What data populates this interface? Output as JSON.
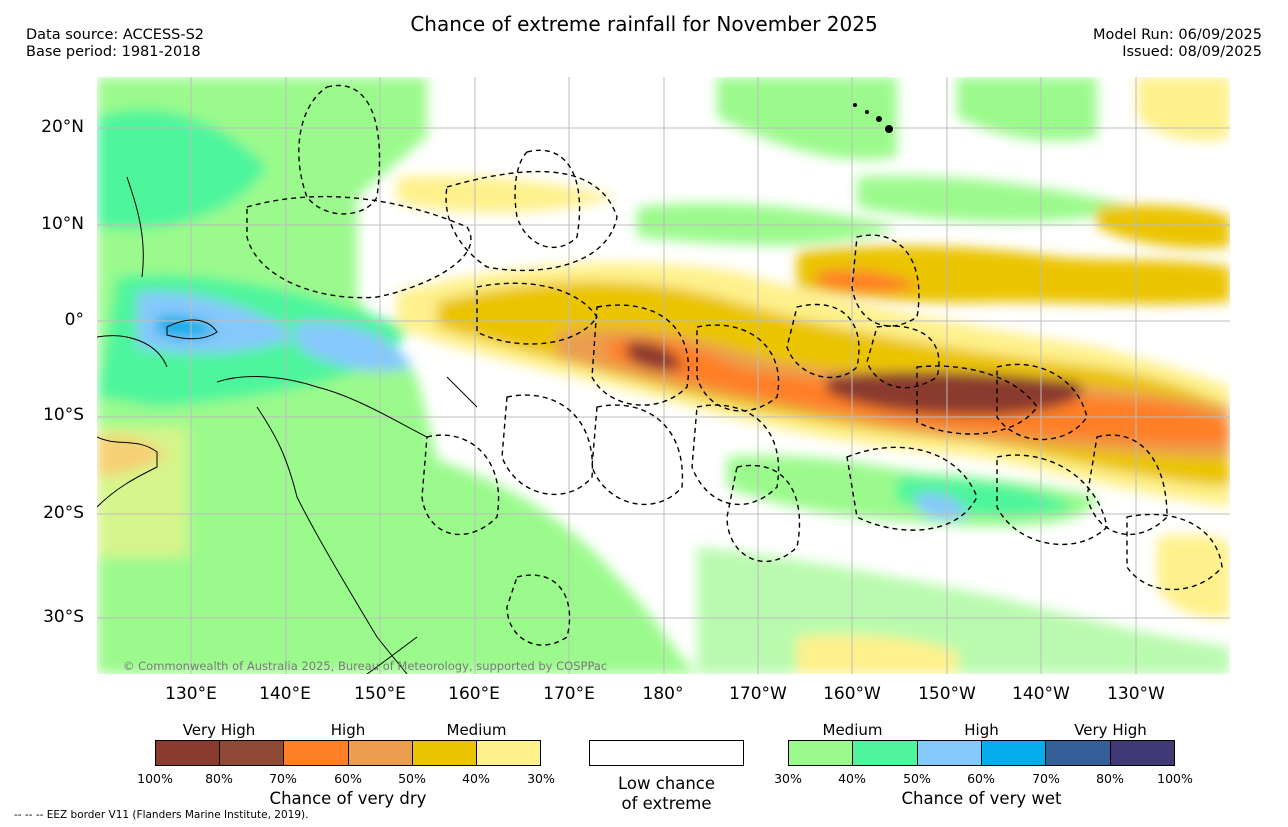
{
  "title": "Chance of extreme rainfall for November 2025",
  "source": {
    "line1": "Data source: ACCESS-S2",
    "line2": "Base period: 1981-2018"
  },
  "model": {
    "run": "Model Run: 06/09/2025",
    "issued": "Issued: 08/09/2025"
  },
  "lat_labels": [
    "20°N",
    "10°N",
    "0°",
    "10°S",
    "20°S",
    "30°S"
  ],
  "lon_labels": [
    "130°E",
    "140°E",
    "150°E",
    "160°E",
    "170°E",
    "180°",
    "170°W",
    "160°W",
    "150°W",
    "140°W",
    "130°W"
  ],
  "copyright": "© Commonwealth of Australia 2025, Bureau of Meteorology, supported by COSPPac",
  "legend": {
    "dry": {
      "categories": [
        "Very High",
        "High",
        "Medium"
      ],
      "ticks": [
        "100%",
        "80%",
        "70%",
        "60%",
        "50%",
        "40%",
        "30%"
      ],
      "caption": "Chance of very dry",
      "colors": [
        "#8b3a2e",
        "#8e4a36",
        "#ff7f26",
        "#eb9e4e",
        "#ebc400",
        "#fef18c"
      ]
    },
    "low": {
      "line1": "Low chance",
      "line2": "of extreme"
    },
    "wet": {
      "categories": [
        "Medium",
        "High",
        "Very High"
      ],
      "ticks": [
        "30%",
        "40%",
        "50%",
        "60%",
        "70%",
        "80%",
        "100%"
      ],
      "caption": "Chance of very wet",
      "colors": [
        "#9bfa8c",
        "#4ef59c",
        "#85c8fb",
        "#05aeea",
        "#345f98",
        "#403a77"
      ]
    }
  },
  "eez_note": "-- -- -- EEZ border V11 (Flanders Marine Institute, 2019)."
}
